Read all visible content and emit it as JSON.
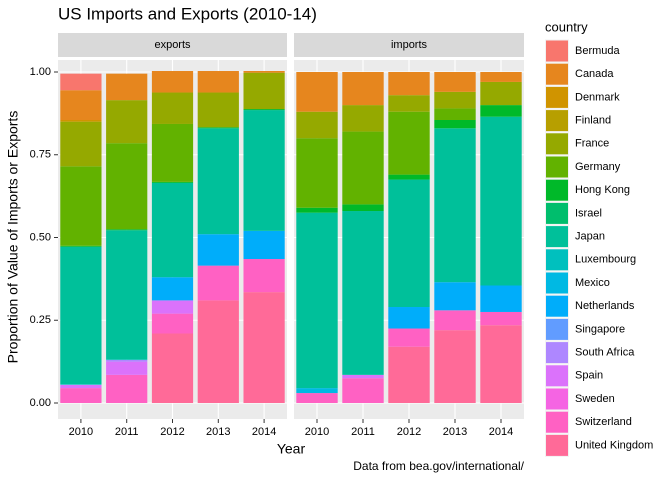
{
  "chart_data": {
    "type": "bar",
    "stacked": true,
    "title": "US Imports and Exports (2010-14)",
    "x_label": "Year",
    "y_label": "Proportion of Value of Imports or Exports",
    "caption": "Data from bea.gov/international/",
    "legend_title": "country",
    "categories": [
      "2010",
      "2011",
      "2012",
      "2013",
      "2014"
    ],
    "ylim": [
      0,
      1
    ],
    "yticks": [
      {
        "value": 0,
        "label": "0.00"
      },
      {
        "value": 0.25,
        "label": "0.25"
      },
      {
        "value": 0.5,
        "label": "0.50"
      },
      {
        "value": 0.75,
        "label": "0.75"
      },
      {
        "value": 1,
        "label": "1.00"
      }
    ],
    "grid": true,
    "series": [
      {
        "name": "Bermuda",
        "color": "#F8766D"
      },
      {
        "name": "Canada",
        "color": "#E6861E"
      },
      {
        "name": "Denmark",
        "color": "#D09400"
      },
      {
        "name": "Finland",
        "color": "#B79F00"
      },
      {
        "name": "France",
        "color": "#95A900"
      },
      {
        "name": "Germany",
        "color": "#62B200"
      },
      {
        "name": "Hong Kong",
        "color": "#00B929"
      },
      {
        "name": "Israel",
        "color": "#00BE6D"
      },
      {
        "name": "Japan",
        "color": "#00C09A"
      },
      {
        "name": "Luxembourg",
        "color": "#00C0BE"
      },
      {
        "name": "Mexico",
        "color": "#00B9E3"
      },
      {
        "name": "Netherlands",
        "color": "#00ADFA"
      },
      {
        "name": "Singapore",
        "color": "#619CFF"
      },
      {
        "name": "South Africa",
        "color": "#AE87FF"
      },
      {
        "name": "Spain",
        "color": "#DB72FB"
      },
      {
        "name": "Sweden",
        "color": "#F564E3"
      },
      {
        "name": "Switzerland",
        "color": "#FF61C3"
      },
      {
        "name": "United Kingdom",
        "color": "#FF6A98"
      }
    ],
    "panels": [
      {
        "label": "exports",
        "values": [
          [
            0.05,
            0,
            0,
            0,
            0
          ],
          [
            0.09,
            0.08,
            0.065,
            0.065,
            0.005
          ],
          [
            0.005,
            0,
            0,
            0,
            0
          ],
          [
            0,
            0,
            0,
            0,
            0
          ],
          [
            0.135,
            0.13,
            0.095,
            0.105,
            0.11
          ],
          [
            0.24,
            0.26,
            0.175,
            0,
            0
          ],
          [
            0.003,
            0.003,
            0.003,
            0.003,
            0.003
          ],
          [
            0,
            0,
            0,
            0,
            0
          ],
          [
            0.415,
            0.39,
            0.285,
            0.32,
            0.365
          ],
          [
            0.002,
            0.002,
            0,
            0,
            0
          ],
          [
            0,
            0,
            0,
            0,
            0
          ],
          [
            0,
            0,
            0.07,
            0.095,
            0.085
          ],
          [
            0,
            0,
            0,
            0,
            0
          ],
          [
            0,
            0.005,
            0,
            0,
            0
          ],
          [
            0.01,
            0.04,
            0.04,
            0,
            0
          ],
          [
            0,
            0,
            0,
            0,
            0
          ],
          [
            0.045,
            0.085,
            0.06,
            0.105,
            0.1
          ],
          [
            0,
            0,
            0.21,
            0.31,
            0.335
          ]
        ]
      },
      {
        "label": "imports",
        "values": [
          [
            0,
            0,
            0,
            0,
            0
          ],
          [
            0.12,
            0.1,
            0.07,
            0.06,
            0.03
          ],
          [
            0,
            0,
            0,
            0,
            0
          ],
          [
            0,
            0,
            0,
            0,
            0
          ],
          [
            0.08,
            0.08,
            0.05,
            0.05,
            0.07
          ],
          [
            0.21,
            0.22,
            0.19,
            0.035,
            0
          ],
          [
            0.015,
            0.02,
            0.015,
            0.025,
            0.035
          ],
          [
            0,
            0,
            0,
            0,
            0
          ],
          [
            0.53,
            0.495,
            0.385,
            0.465,
            0.51
          ],
          [
            0,
            0,
            0,
            0,
            0
          ],
          [
            0.015,
            0,
            0,
            0,
            0
          ],
          [
            0,
            0,
            0.065,
            0.085,
            0.08
          ],
          [
            0,
            0,
            0,
            0,
            0
          ],
          [
            0,
            0,
            0,
            0,
            0
          ],
          [
            0,
            0.01,
            0,
            0,
            0
          ],
          [
            0,
            0,
            0,
            0,
            0
          ],
          [
            0.03,
            0.075,
            0.055,
            0.06,
            0.04
          ],
          [
            0,
            0,
            0.17,
            0.22,
            0.235
          ]
        ]
      }
    ]
  }
}
